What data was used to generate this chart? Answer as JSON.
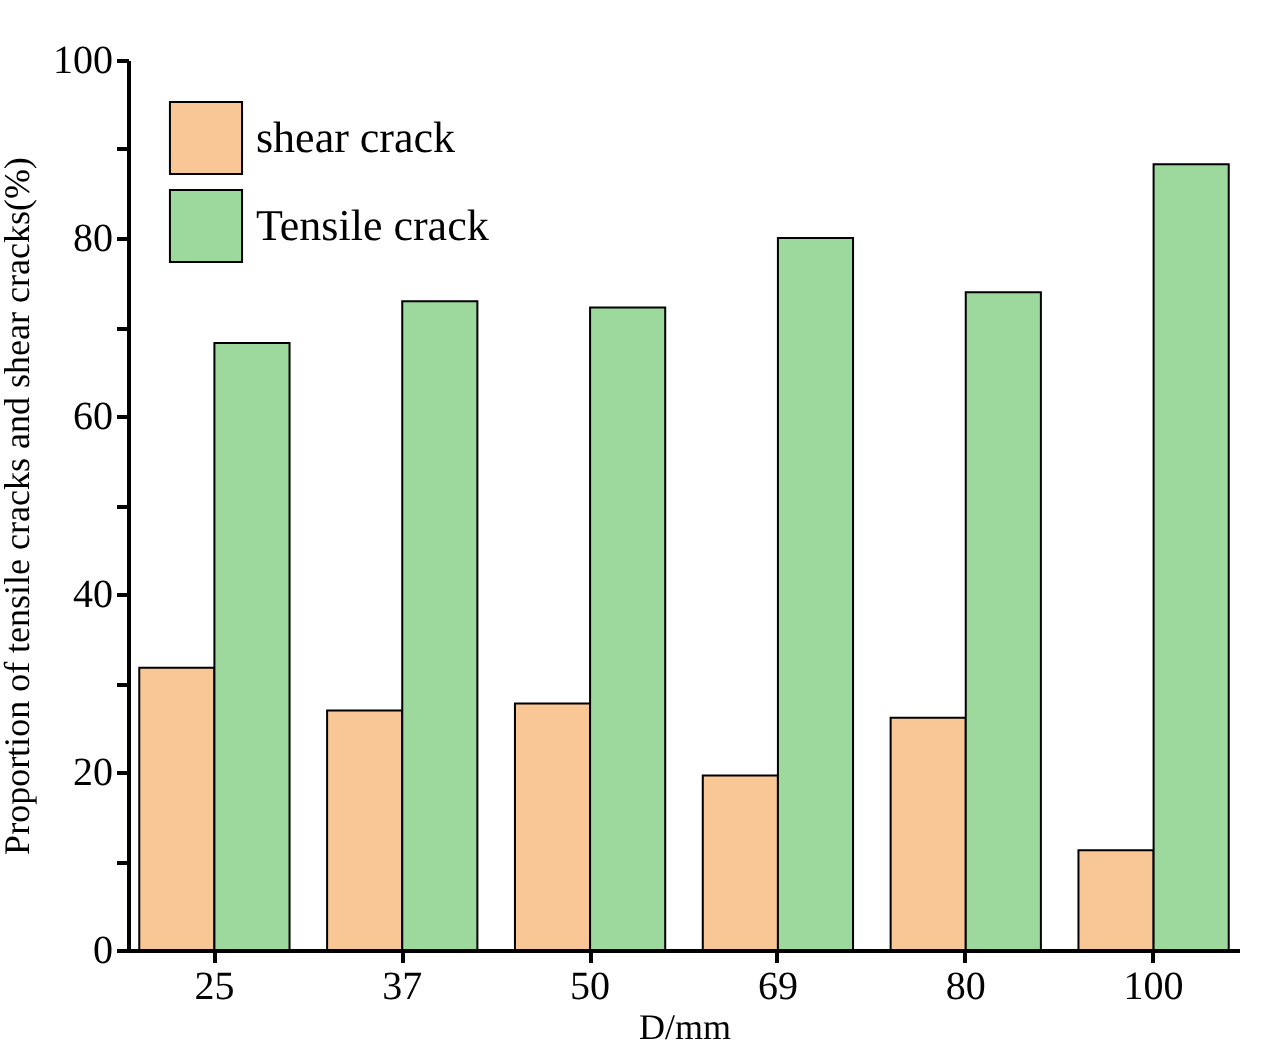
{
  "chart_data": {
    "type": "bar",
    "xlabel": "D/mm",
    "ylabel": "Proportion of tensile cracks and shear cracks(%)",
    "categories": [
      "25",
      "37",
      "50",
      "69",
      "80",
      "100"
    ],
    "series": [
      {
        "name": "shear  crack",
        "color": "#f9c795",
        "values": [
          31.7,
          26.9,
          27.7,
          19.6,
          26.1,
          11.2
        ]
      },
      {
        "name": "Tensile crack",
        "color": "#9dd89c",
        "values": [
          68.2,
          72.9,
          72.2,
          80.0,
          73.9,
          88.3
        ]
      }
    ],
    "ylim": [
      0,
      100
    ],
    "yticks": [
      0,
      {
        "value": 10,
        "label": null
      },
      20,
      {
        "value": 30,
        "label": null
      },
      40,
      {
        "value": 50,
        "label": null
      },
      60,
      {
        "value": 70,
        "label": null
      },
      80,
      {
        "value": 90,
        "label": null
      },
      100
    ],
    "grid": false,
    "legend": "top left"
  }
}
